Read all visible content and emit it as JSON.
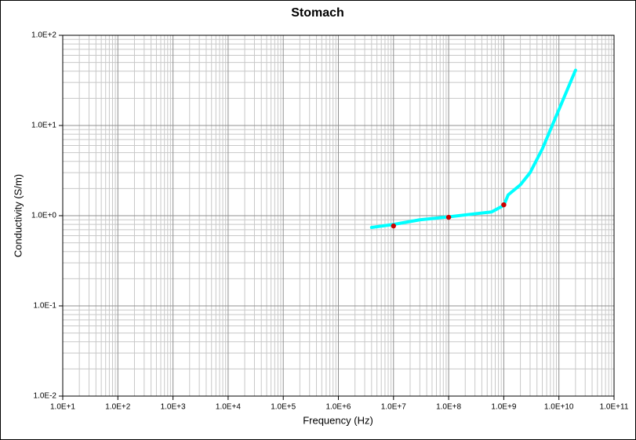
{
  "chart_data": {
    "type": "line",
    "title": "Stomach",
    "x_label": "Frequency (Hz)",
    "y_label": "Conductivity (S/m)",
    "x_log": true,
    "y_log": true,
    "grid": true,
    "xlim": [
      10,
      100000000000
    ],
    "ylim": [
      0.01,
      100
    ],
    "xticks": [
      {
        "value": 10,
        "label": "1.0E+1"
      },
      {
        "value": 100,
        "label": "1.0E+2"
      },
      {
        "value": 1000,
        "label": "1.0E+3"
      },
      {
        "value": 10000,
        "label": "1.0E+4"
      },
      {
        "value": 100000,
        "label": "1.0E+5"
      },
      {
        "value": 1000000,
        "label": "1.0E+6"
      },
      {
        "value": 10000000,
        "label": "1.0E+7"
      },
      {
        "value": 100000000,
        "label": "1.0E+8"
      },
      {
        "value": 1000000000,
        "label": "1.0E+9"
      },
      {
        "value": 10000000000,
        "label": "1.0E+10"
      },
      {
        "value": 100000000000,
        "label": "1.0E+11"
      }
    ],
    "yticks": [
      {
        "value": 0.01,
        "label": "1.0E-2"
      },
      {
        "value": 0.1,
        "label": "1.0E-1"
      },
      {
        "value": 1,
        "label": "1.0E+0"
      },
      {
        "value": 10,
        "label": "1.0E+1"
      },
      {
        "value": 100,
        "label": "1.0E+2"
      }
    ],
    "series": [
      {
        "color": "#00ffff",
        "marker": "line",
        "x": [
          4000000,
          10000000,
          30000000,
          100000000,
          300000000,
          600000000,
          1000000000,
          1200000000,
          2000000000,
          3000000000,
          5000000000,
          10000000000,
          20000000000
        ],
        "values": [
          0.74,
          0.8,
          0.9,
          0.97,
          1.05,
          1.1,
          1.3,
          1.7,
          2.2,
          3.0,
          5.5,
          15,
          41
        ]
      },
      {
        "color": "#cc0000",
        "marker": "dot",
        "x": [
          10000000,
          100000000,
          1000000000
        ],
        "values": [
          0.77,
          0.96,
          1.32
        ]
      }
    ]
  }
}
